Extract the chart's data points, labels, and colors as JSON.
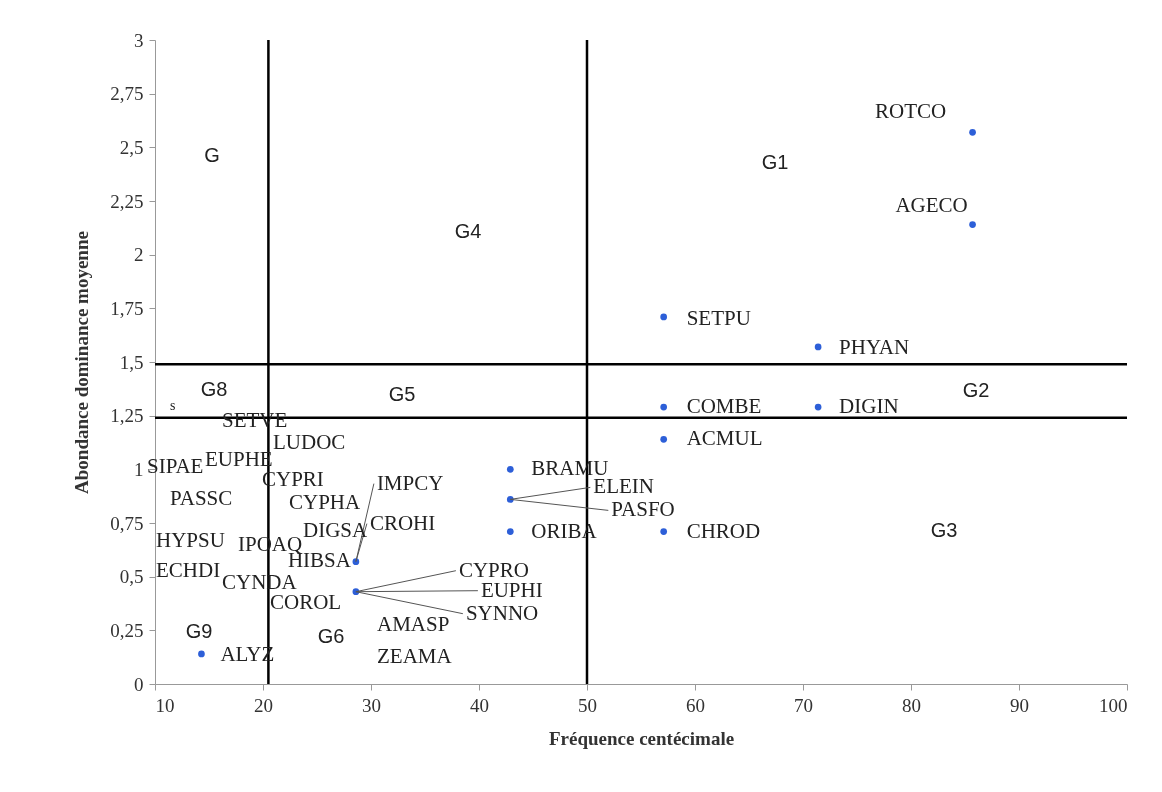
{
  "chart_data": {
    "type": "scatter",
    "xlabel": "Fréquence centécimale",
    "ylabel": "Abondance dominance moyenne",
    "xlim": [
      10,
      100
    ],
    "xticks": [
      10,
      20,
      30,
      40,
      50,
      60,
      70,
      80,
      90,
      100
    ],
    "ylim": [
      0,
      3
    ],
    "yticks": [
      0,
      {
        "value": 0.25,
        "label": "0,25"
      },
      {
        "value": 0.5,
        "label": "0,5"
      },
      {
        "value": 0.75,
        "label": "0,75"
      },
      1,
      {
        "value": 1.25,
        "label": "1,25"
      },
      {
        "value": 1.5,
        "label": "1,5"
      },
      {
        "value": 1.75,
        "label": "1,75"
      },
      2,
      {
        "value": 2.25,
        "label": "2,25"
      },
      {
        "value": 2.5,
        "label": "2,5"
      },
      {
        "value": 2.75,
        "label": "2,75"
      },
      3
    ],
    "marker": "circle",
    "series": [
      {
        "color": "#2d5fd8",
        "x": [
          85.7,
          85.7,
          57.1,
          71.4,
          57.1,
          71.4,
          57.1,
          42.9,
          42.9,
          42.9,
          57.1,
          28.6,
          28.6,
          14.3
        ],
        "values": [
          2.57,
          2.14,
          1.71,
          1.57,
          1.29,
          1.29,
          1.14,
          1.0,
          0.86,
          0.71,
          0.71,
          0.57,
          0.43,
          0.14
        ]
      }
    ],
    "ref_lines": [
      {
        "axis": "x",
        "value": 20.5,
        "color": "#000000"
      },
      {
        "axis": "x",
        "value": 50,
        "color": "#000000"
      },
      {
        "axis": "y",
        "value": 1.49,
        "color": "#000000"
      },
      {
        "axis": "y",
        "value": 1.24,
        "color": "#000000"
      }
    ],
    "annotations": [
      {
        "text": "ROTCO",
        "x": 85.7,
        "y": 2.57
      },
      {
        "text": "AGECO",
        "x": 85.7,
        "y": 2.14
      },
      {
        "text": "SETPU",
        "x": 57.1,
        "y": 1.71
      },
      {
        "text": "PHYAN",
        "x": 71.4,
        "y": 1.57
      },
      {
        "text": "COMBE",
        "x": 57.1,
        "y": 1.29
      },
      {
        "text": "DIGIN",
        "x": 71.4,
        "y": 1.29
      },
      {
        "text": "ACMUL",
        "x": 57.1,
        "y": 1.14
      },
      {
        "text": "BRAMU",
        "x": 42.9,
        "y": 1.0
      },
      {
        "text": "ELEIN",
        "x": 42.9,
        "y": 0.86
      },
      {
        "text": "PASFO",
        "x": 42.9,
        "y": 0.86
      },
      {
        "text": "ORIBA",
        "x": 42.9,
        "y": 0.71
      },
      {
        "text": "CHROD",
        "x": 57.1,
        "y": 0.71
      },
      {
        "text": "HIBSA",
        "x": 28.6,
        "y": 0.57
      },
      {
        "text": "CROHI",
        "x": 28.6,
        "y": 0.57
      },
      {
        "text": "IMPCY",
        "x": 28.6,
        "y": 0.57
      },
      {
        "text": "CYPRO",
        "x": 28.6,
        "y": 0.43
      },
      {
        "text": "EUPHI",
        "x": 28.6,
        "y": 0.43
      },
      {
        "text": "SYNNO",
        "x": 28.6,
        "y": 0.43
      },
      {
        "text": "ALYZ",
        "x": 14.3,
        "y": 0.14
      },
      "G",
      "G1",
      "G4",
      "G8",
      "G5",
      "G2",
      "G3",
      "G9",
      "G6",
      "s",
      "SETVE",
      "LUDOC",
      "SIPAE",
      "EUPHE",
      "CYPRI",
      "PASSC",
      "CYPHA",
      "DIGSA",
      "HYPSU",
      "IPOAQ",
      "ECHDI",
      "CYNDA",
      "COROL",
      "AMASP",
      "ZEAMA"
    ]
  }
}
